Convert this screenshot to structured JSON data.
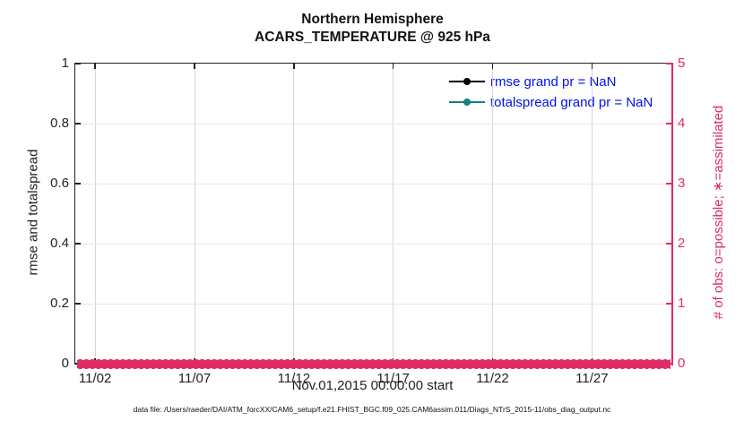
{
  "caption": "data file: /Users/raeder/DAI/ATM_forcXX/CAM6_setup/f.e21.FHIST_BGC.f09_025.CAM6assim.011/Diags_NTrS_2015-11/obs_diag_output.nc",
  "colors": {
    "axis_dark": "#222222",
    "right_axis_pink": "#df2c65",
    "grid_vertical_gray": "#d6d6d6",
    "grid_horizontal_pink": "#f8dde9",
    "legend_text_blue": "#0011ee",
    "rmse_black": "#000000",
    "totalspread_teal": "#178080"
  },
  "chart_data": {
    "type": "line",
    "title": "Northern Hemisphere",
    "subtitle": "ACARS_TEMPERATURE @ 925 hPa",
    "xlabel": "Nov.01,2015 00:00:00 start",
    "ylabel_left": "rmse and totalspread",
    "ylabel_right": "# of obs: o=possible; ∗=assimilated",
    "x_ticks": {
      "labels": [
        "11/02",
        "11/07",
        "11/12",
        "11/17",
        "11/22",
        "11/27"
      ],
      "fracs": [
        0.0333,
        0.2,
        0.3667,
        0.5333,
        0.7,
        0.8667
      ]
    },
    "y_ticks_left": {
      "labels": [
        "0",
        "0.2",
        "0.4",
        "0.6",
        "0.8",
        "1"
      ],
      "fracs": [
        0,
        0.2,
        0.4,
        0.6,
        0.8,
        1
      ]
    },
    "y_ticks_right": {
      "labels": [
        "0",
        "1",
        "2",
        "3",
        "4",
        "5"
      ],
      "fracs": [
        0,
        0.2,
        0.4,
        0.6,
        0.8,
        1
      ]
    },
    "ylim_left": [
      0,
      1
    ],
    "ylim_right": [
      0,
      5
    ],
    "grid": true,
    "legend_position": "top-right-inside",
    "series": [
      {
        "name": "rmse",
        "legend_label": "rmse grand pr = NaN",
        "color": "#000000",
        "values": "NaN — no curve drawn"
      },
      {
        "name": "totalspread",
        "legend_label": "totalspread grand pr = NaN",
        "color": "#178080",
        "values": "NaN — no curve drawn"
      },
      {
        "name": "obs_assimilated",
        "marker": "∗",
        "color": "#df2c65",
        "constant_value": 0,
        "note": "dense ∗ markers at y=0 for every time step across the full x range"
      }
    ]
  }
}
